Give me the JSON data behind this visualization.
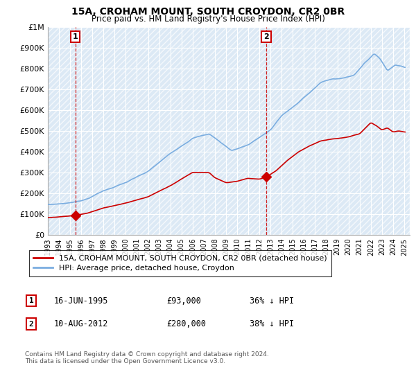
{
  "title": "15A, CROHAM MOUNT, SOUTH CROYDON, CR2 0BR",
  "subtitle": "Price paid vs. HM Land Registry's House Price Index (HPI)",
  "ylabel_ticks": [
    "£0",
    "£100K",
    "£200K",
    "£300K",
    "£400K",
    "£500K",
    "£600K",
    "£700K",
    "£800K",
    "£900K",
    "£1M"
  ],
  "ytick_values": [
    0,
    100000,
    200000,
    300000,
    400000,
    500000,
    600000,
    700000,
    800000,
    900000,
    1000000
  ],
  "xlim": [
    1993.0,
    2025.5
  ],
  "ylim": [
    0,
    1000000
  ],
  "xticks": [
    1993,
    1994,
    1995,
    1996,
    1997,
    1998,
    1999,
    2000,
    2001,
    2002,
    2003,
    2004,
    2005,
    2006,
    2007,
    2008,
    2009,
    2010,
    2011,
    2012,
    2013,
    2014,
    2015,
    2016,
    2017,
    2018,
    2019,
    2020,
    2021,
    2022,
    2023,
    2024,
    2025
  ],
  "point1_x": 1995.46,
  "point1_y": 93000,
  "point2_x": 2012.61,
  "point2_y": 280000,
  "sale_color": "#cc0000",
  "hpi_color": "#7aade0",
  "marker_color": "#cc0000",
  "vline_color": "#cc0000",
  "plot_bg_color": "#dce9f5",
  "legend_label_sale": "15A, CROHAM MOUNT, SOUTH CROYDON, CR2 0BR (detached house)",
  "legend_label_hpi": "HPI: Average price, detached house, Croydon",
  "annotation1_label": "1",
  "annotation1_date": "16-JUN-1995",
  "annotation1_price": "£93,000",
  "annotation1_hpi": "36% ↓ HPI",
  "annotation2_label": "2",
  "annotation2_date": "10-AUG-2012",
  "annotation2_price": "£280,000",
  "annotation2_hpi": "38% ↓ HPI",
  "footnote": "Contains HM Land Registry data © Crown copyright and database right 2024.\nThis data is licensed under the Open Government Licence v3.0.",
  "background_color": "#ffffff"
}
